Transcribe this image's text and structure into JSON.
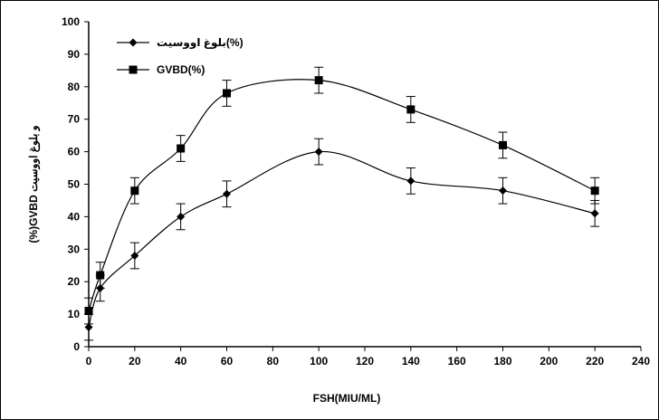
{
  "chart_data": {
    "type": "line",
    "x_axis": {
      "label": "FSH(MIU/ML)",
      "range": [
        0,
        240
      ],
      "ticks": [
        "0",
        "20",
        "40",
        "60",
        "80",
        "100",
        "120",
        "140",
        "160",
        "180",
        "200",
        "220",
        "240"
      ]
    },
    "y_axis": {
      "label": "(%)GVBD و بلوغ اووسيت",
      "range": [
        0,
        100
      ],
      "ticks": [
        "0",
        "10",
        "20",
        "30",
        "40",
        "50",
        "60",
        "70",
        "80",
        "90",
        "100"
      ]
    },
    "grid": false,
    "legend_position": "top-left",
    "series": [
      {
        "name": "بلوغ اووسيت(%)",
        "marker": "diamond",
        "color": "#000000",
        "points": [
          {
            "x": 0,
            "y": 6,
            "err": 4
          },
          {
            "x": 5,
            "y": 18,
            "err": 4
          },
          {
            "x": 20,
            "y": 28,
            "err": 4
          },
          {
            "x": 40,
            "y": 40,
            "err": 4
          },
          {
            "x": 60,
            "y": 47,
            "err": 4
          },
          {
            "x": 100,
            "y": 60,
            "err": 4
          },
          {
            "x": 140,
            "y": 51,
            "err": 4
          },
          {
            "x": 180,
            "y": 48,
            "err": 4
          },
          {
            "x": 220,
            "y": 41,
            "err": 4
          }
        ]
      },
      {
        "name": "GVBD(%)",
        "marker": "square",
        "color": "#000000",
        "points": [
          {
            "x": 0,
            "y": 11,
            "err": 4
          },
          {
            "x": 5,
            "y": 22,
            "err": 4
          },
          {
            "x": 20,
            "y": 48,
            "err": 4
          },
          {
            "x": 40,
            "y": 61,
            "err": 4
          },
          {
            "x": 60,
            "y": 78,
            "err": 4
          },
          {
            "x": 100,
            "y": 82,
            "err": 4
          },
          {
            "x": 140,
            "y": 73,
            "err": 4
          },
          {
            "x": 180,
            "y": 62,
            "err": 4
          },
          {
            "x": 220,
            "y": 48,
            "err": 4
          }
        ]
      }
    ]
  }
}
